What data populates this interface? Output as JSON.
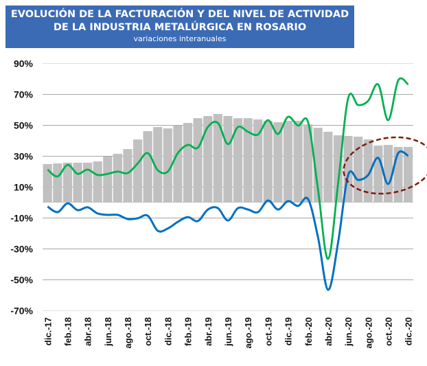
{
  "header": {
    "title_line1": "EVOLUCIÓN DE LA FACTURACIÓN Y DEL NIVEL DE ACTIVIDAD",
    "title_line2": "DE LA INDUSTRIA METALÚRGICA EN ROSARIO",
    "subtitle": "variaciones interanuales"
  },
  "colors": {
    "title_bg": "#3c6bb5",
    "bars": "#c0c0c0",
    "green_line": "#00b050",
    "blue_line": "#0070c0",
    "ellipse": "#7f1a10",
    "grid": "#a6a6a6"
  },
  "chart_data": {
    "type": "bar+line",
    "title": "EVOLUCIÓN DE LA FACTURACIÓN Y DEL NIVEL DE ACTIVIDAD DE LA INDUSTRIA METALÚRGICA EN ROSARIO",
    "subtitle": "variaciones interanuales",
    "xlabel": "",
    "ylabel": "",
    "ylim": [
      -70,
      90
    ],
    "yticks": [
      90,
      70,
      50,
      30,
      10,
      -10,
      -30,
      -50,
      -70
    ],
    "ytick_labels": [
      "90%",
      "70%",
      "50%",
      "30%",
      "10%",
      "-10%",
      "-30%",
      "-50%",
      "-70%"
    ],
    "grid": true,
    "legend": "none",
    "months": [
      "dic.-17",
      "ene.-18",
      "feb.-18",
      "mar.-18",
      "abr.-18",
      "may.-18",
      "jun.-18",
      "jul.-18",
      "ago.-18",
      "sep.-18",
      "oct.-18",
      "nov.-18",
      "dic.-18",
      "ene.-19",
      "feb.-19",
      "mar.-19",
      "abr.-19",
      "may.-19",
      "jun.-19",
      "jul.-19",
      "ago.-19",
      "sep.-19",
      "oct.-19",
      "nov.-19",
      "dic.-19",
      "ene.-20",
      "feb.-20",
      "mar.-20",
      "abr.-20",
      "may.-20",
      "jun.-20",
      "jul.-20",
      "ago.-20",
      "sep.-20",
      "oct.-20",
      "nov.-20",
      "dic.-20"
    ],
    "xtick_labels": [
      "dic.-17",
      "feb.-18",
      "abr.-18",
      "jun.-18",
      "ago.-18",
      "oct.-18",
      "dic.-18",
      "feb.-19",
      "abr.-19",
      "jun.-19",
      "ago.-19",
      "oct.-19",
      "dic.-19",
      "feb.-20",
      "abr.-20",
      "jun.-20",
      "ago.-20",
      "oct.-20",
      "dic.-20"
    ],
    "series": [
      {
        "name": "Serie barras (gris)",
        "type": "bar",
        "values": [
          24.7,
          25.1,
          25.6,
          25.6,
          25.6,
          26.4,
          29.6,
          31.3,
          34.4,
          40.6,
          46.0,
          48.7,
          47.8,
          49.6,
          51.3,
          54.4,
          55.8,
          57.1,
          55.8,
          54.4,
          54.4,
          53.6,
          52.7,
          51.8,
          52.7,
          52.7,
          50.4,
          48.2,
          45.6,
          43.3,
          42.9,
          42.4,
          40.7,
          36.7,
          37.1,
          35.8,
          35.8
        ]
      },
      {
        "name": "Serie verde",
        "type": "line",
        "values": [
          21.1,
          16.7,
          24.2,
          18.4,
          21.1,
          17.6,
          18.4,
          19.8,
          18.9,
          25.1,
          31.8,
          20.7,
          19.8,
          31.8,
          37.1,
          35.3,
          48.7,
          51.3,
          37.6,
          48.7,
          45.6,
          43.8,
          53.1,
          44.2,
          55.3,
          49.6,
          51.8,
          7.8,
          -36.7,
          12.2,
          67.3,
          62.9,
          65.6,
          76.2,
          53.1,
          78.9,
          76.2
        ]
      },
      {
        "name": "Serie azul",
        "type": "line",
        "values": [
          -2.8,
          -6.4,
          -0.7,
          -5.1,
          -3.3,
          -7.3,
          -8.2,
          -8.2,
          -10.9,
          -10.4,
          -8.7,
          -18.5,
          -17.0,
          -12.7,
          -9.6,
          -12.2,
          -4.7,
          -3.8,
          -11.8,
          -3.8,
          -4.7,
          -6.4,
          1.1,
          -4.7,
          0.7,
          -2.4,
          2.0,
          -23.0,
          -56.7,
          -26.0,
          17.6,
          14.4,
          17.6,
          28.7,
          11.8,
          31.8,
          30.0
        ]
      }
    ],
    "annotations": [
      {
        "type": "dashed-ellipse",
        "description": "highlight of recent months",
        "from": "jun.-20",
        "to": "dic.-20"
      }
    ]
  }
}
